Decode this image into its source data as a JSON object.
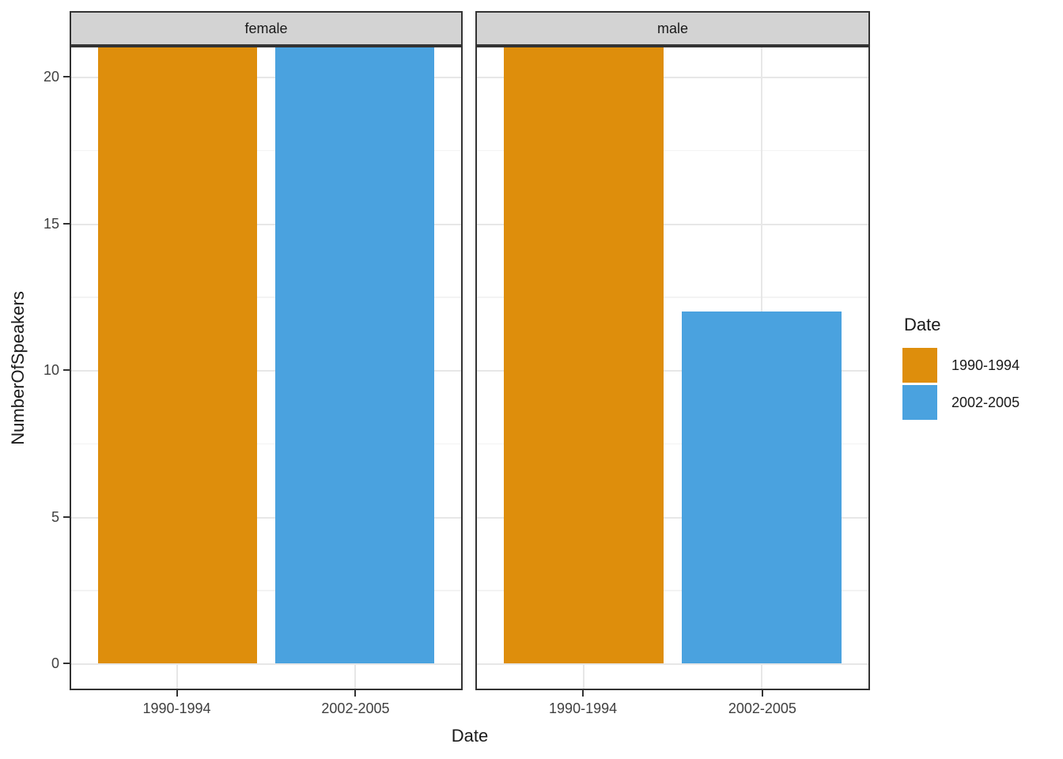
{
  "figure": {
    "background": "#ffffff",
    "x_axis_title": "Date",
    "y_axis_title": "NumberOfSpeakers",
    "y_ticks": [
      0,
      5,
      10,
      15,
      20
    ],
    "x_categories": [
      "1990-1994",
      "2002-2005"
    ],
    "facets": [
      "female",
      "male"
    ],
    "strip_fill": "#d3d3d3",
    "panel_border_color": "#333333",
    "gridline_color": "#e7e7e7"
  },
  "legend": {
    "title": "Date",
    "items": [
      {
        "label": "1990-1994",
        "color": "#de8e0c"
      },
      {
        "label": "2002-2005",
        "color": "#4aa2df"
      }
    ]
  },
  "chart_data": {
    "type": "bar",
    "title": "",
    "xlabel": "Date",
    "ylabel": "NumberOfSpeakers",
    "facet_labels": [
      "female",
      "male"
    ],
    "categories": [
      "1990-1994",
      "2002-2005"
    ],
    "facets": [
      {
        "name": "female",
        "values": [
          21,
          21
        ],
        "clipped": [
          true,
          true
        ]
      },
      {
        "name": "male",
        "values": [
          21,
          12
        ],
        "clipped": [
          true,
          false
        ]
      }
    ],
    "series_colors": {
      "1990-1994": "#de8e0c",
      "2002-2005": "#4aa2df"
    },
    "ylim": [
      0,
      21
    ],
    "y_major_gridlines": [
      0,
      5,
      10,
      15,
      20
    ],
    "y_minor_gridlines": [
      2.5,
      7.5,
      12.5,
      17.5
    ],
    "grid": true,
    "legend_position": "right",
    "note": "Bars for female 1990-1994, female 2002-2005 and male 1990-1994 reach the panel top and are clipped at y=21; male 2002-2005 bar height is 12."
  }
}
